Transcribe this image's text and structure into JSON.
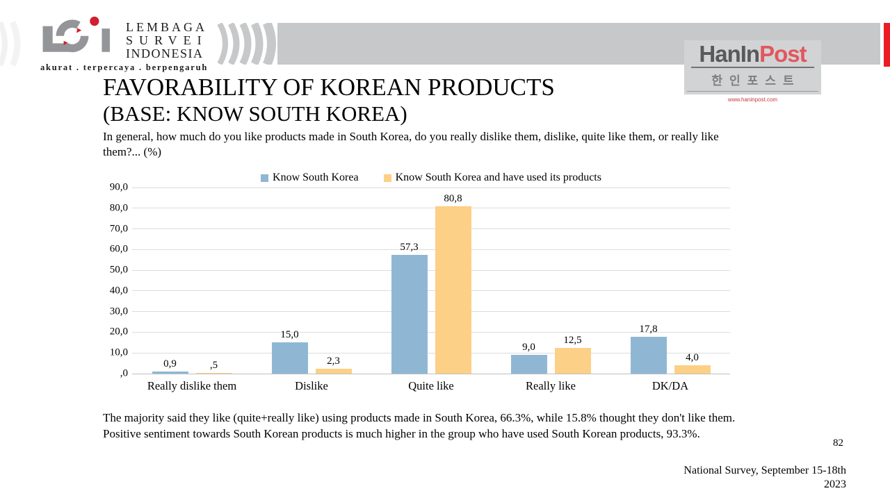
{
  "branding": {
    "lsi": {
      "name_lines": [
        "LEMBAGA",
        "SURVEI",
        "INDONESIA"
      ],
      "tagline": "akurat . terpercaya . berpengaruh",
      "gray": "#939598",
      "red": "#cf2030"
    },
    "haninpost": {
      "name_gray": "HanIn",
      "name_red": "Post",
      "korean": "한인포스트",
      "url": "www.haninpost.com"
    }
  },
  "header": {
    "title_line1": "FAVORABILITY OF KOREAN PRODUCTS",
    "title_line2": "(BASE: KNOW SOUTH KOREA)",
    "subtitle": "In general, how much do you like products made in South Korea, do you really dislike them, dislike, quite like them, or really like them?... (%)"
  },
  "chart_data": {
    "type": "bar",
    "categories": [
      "Really dislike them",
      "Dislike",
      "Quite like",
      "Really like",
      "DK/DA"
    ],
    "series": [
      {
        "name": "Know South Korea",
        "color": "#8fb7d3",
        "values": [
          0.9,
          15.0,
          57.3,
          9.0,
          17.8
        ],
        "labels": [
          "0,9",
          "15,0",
          "57,3",
          "9,0",
          "17,8"
        ]
      },
      {
        "name": "Know South Korea and have used its products",
        "color": "#fcd086",
        "values": [
          0.5,
          2.3,
          80.8,
          12.5,
          4.0
        ],
        "labels": [
          ",5",
          "2,3",
          "80,8",
          "12,5",
          "4,0"
        ]
      }
    ],
    "y_axis": {
      "min": 0,
      "max": 90,
      "step": 10,
      "tick_labels": [
        "90,0",
        "80,0",
        "70,0",
        "60,0",
        "50,0",
        "40,0",
        "30,0",
        "20,0",
        "10,0",
        ",0"
      ]
    },
    "legend_position": "top",
    "grid": true,
    "gridline_color": "#dcdcdc"
  },
  "body": {
    "summary": "The majority said they like (quite+really like) using products made in South Korea, 66.3%, while 15.8% thought they don't like them. Positive sentiment towards South Korean products is much higher in the group who have used South Korean products, 93.3%."
  },
  "footer": {
    "page_number": "82",
    "survey_line1": "National Survey, September 15-18th",
    "survey_line2": "2023"
  }
}
